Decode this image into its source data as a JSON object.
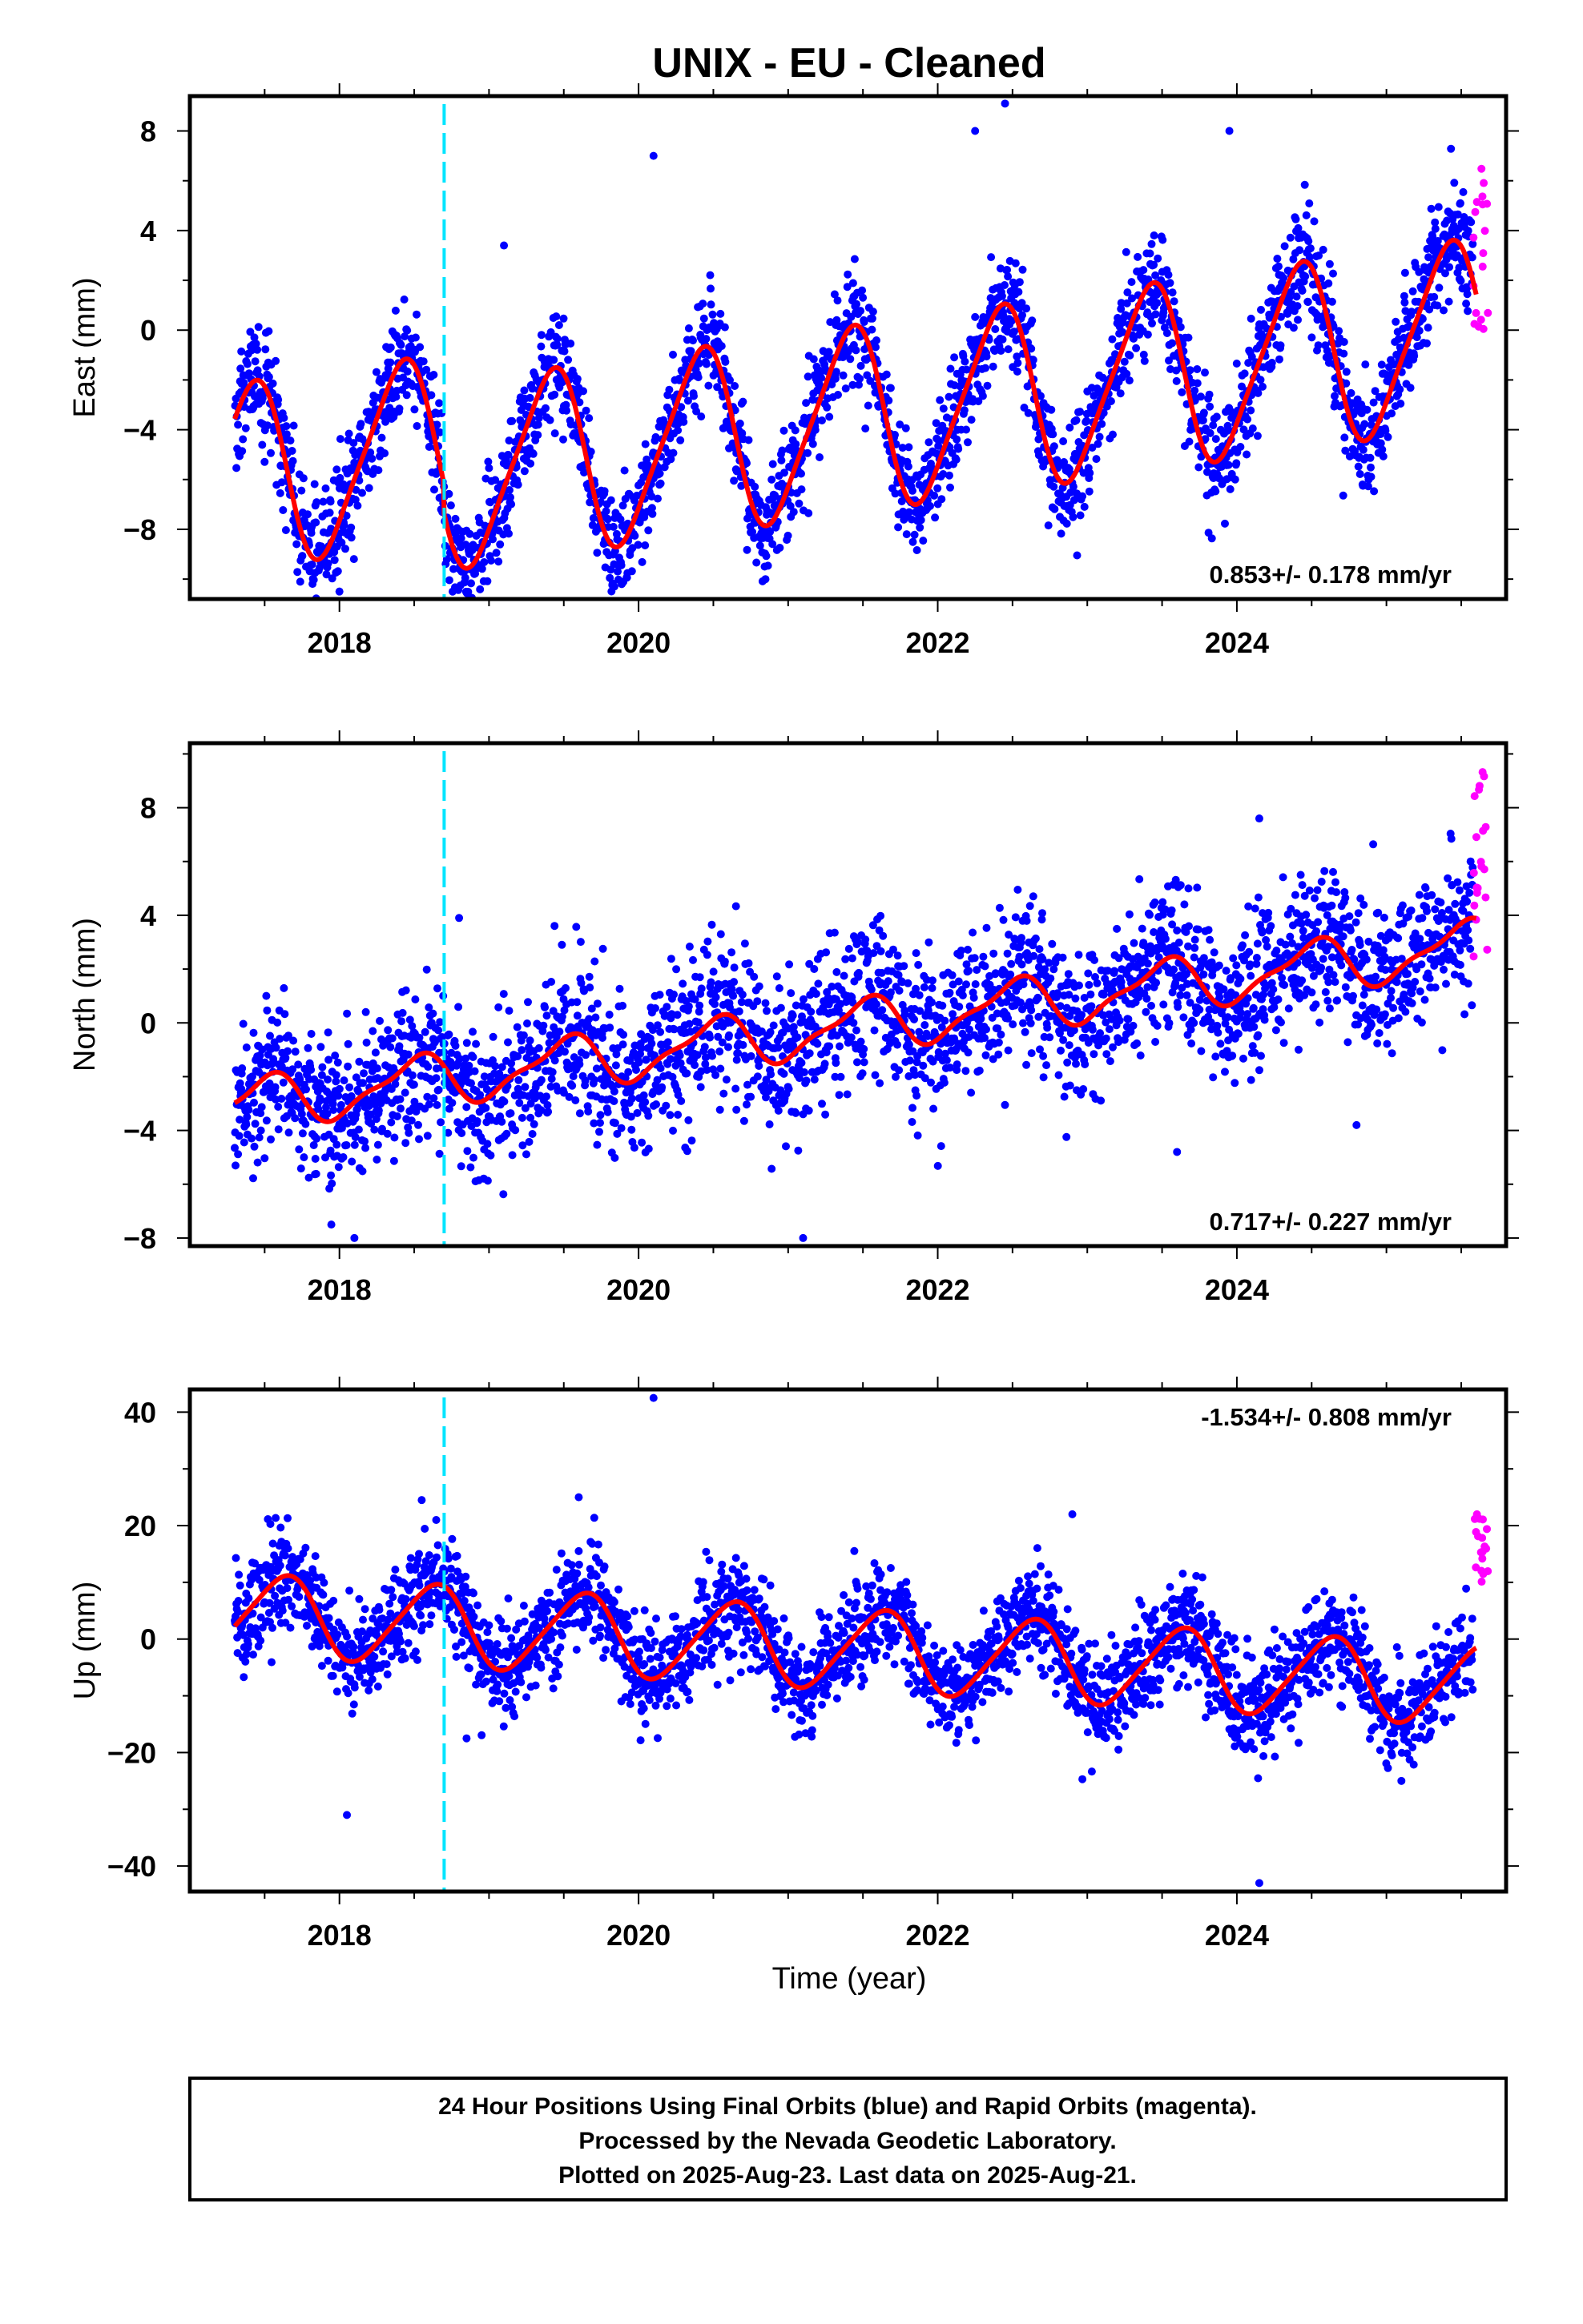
{
  "chart_data": {
    "title": "UNIX  - EU - Cleaned",
    "xlabel": "Time (year)",
    "x_range": [
      2017.0,
      2025.8
    ],
    "x_ticks": [
      2018,
      2020,
      2022,
      2024
    ],
    "earthquake_marker": 2018.7,
    "colors": {
      "final_orbits": "#0000ff",
      "rapid_orbits": "#ff00ff",
      "model": "#ff0000",
      "marker": "#00e5ff",
      "frame": "#000000"
    },
    "panels": [
      {
        "type": "scatter",
        "name": "east",
        "ylabel": "East (mm)",
        "ylim": [
          -10.8,
          9.4
        ],
        "y_ticks": [
          8,
          4,
          0,
          -4,
          -8
        ],
        "y_tick_labels": [
          "8",
          "4",
          "0",
          "−4",
          "−8"
        ],
        "rate_label": "0.853+/- 0.178 mm/yr",
        "rate_position": "bottom-right",
        "model": {
          "start_x": 2017.3,
          "start_y": -3.0,
          "trend": 0.853,
          "annual_amplitude": 3.6,
          "annual_peak": 0.4,
          "offset_at_marker": -1.2,
          "semiannual_amplitude": 0.6,
          "noise": 1.1,
          "outliers": [
            [
              2020.1,
              7.0
            ],
            [
              2022.25,
              8.0
            ],
            [
              2022.45,
              9.1
            ],
            [
              2023.95,
              8.0
            ],
            [
              2018.0,
              -10.5
            ],
            [
              2021.75,
              -5.4
            ],
            [
              2019.1,
              3.4
            ]
          ]
        },
        "rapid": {
          "x_range": [
            2025.58,
            2025.68
          ],
          "y_range": [
            -0.2,
            7.0
          ],
          "count": 18
        }
      },
      {
        "type": "scatter",
        "name": "north",
        "ylabel": "North (mm)",
        "ylim": [
          -8.3,
          10.4
        ],
        "y_ticks": [
          8,
          4,
          0,
          -4,
          -8
        ],
        "y_tick_labels": [
          "8",
          "4",
          "0",
          "−4",
          "−8"
        ],
        "rate_label": "0.717+/- 0.227 mm/yr",
        "rate_position": "bottom-right",
        "model": {
          "start_x": 2017.3,
          "start_y": -2.8,
          "trend": 0.717,
          "annual_amplitude": 0.9,
          "annual_peak": 0.5,
          "offset_at_marker": 0.0,
          "semiannual_amplitude": 0.3,
          "noise": 1.4,
          "outliers": [
            [
              2024.15,
              7.6
            ],
            [
              2021.1,
              -8.0
            ],
            [
              2018.1,
              -8.0
            ],
            [
              2023.6,
              -4.8
            ],
            [
              2024.8,
              -3.8
            ],
            [
              2018.8,
              3.9
            ]
          ]
        },
        "rapid": {
          "x_range": [
            2025.58,
            2025.68
          ],
          "y_range": [
            2.0,
            10.0
          ],
          "count": 20
        }
      },
      {
        "type": "scatter",
        "name": "up",
        "ylabel": "Up (mm)",
        "ylim": [
          -44.5,
          44.0
        ],
        "y_ticks": [
          40,
          20,
          0,
          -20,
          -40
        ],
        "y_tick_labels": [
          "40",
          "20",
          "0",
          "−20",
          "−40"
        ],
        "rate_label": "-1.534+/- 0.808 mm/yr",
        "rate_position": "top-right",
        "model": {
          "start_x": 2017.3,
          "start_y": 1.5,
          "trend": -1.534,
          "annual_amplitude": 7.0,
          "annual_peak": 0.62,
          "offset_at_marker": 0.0,
          "semiannual_amplitude": 1.0,
          "noise": 4.5,
          "outliers": [
            [
              2020.1,
              42.5
            ],
            [
              2018.05,
              -31.0
            ],
            [
              2024.15,
              -43.0
            ],
            [
              2018.55,
              24.5
            ],
            [
              2019.6,
              25.0
            ],
            [
              2022.9,
              22.0
            ],
            [
              2018.85,
              -17.5
            ],
            [
              2025.1,
              -25.0
            ]
          ]
        },
        "rapid": {
          "x_range": [
            2025.58,
            2025.68
          ],
          "y_range": [
            10.0,
            22.0
          ],
          "count": 18
        }
      }
    ]
  },
  "footer": {
    "line1": "24 Hour Positions Using Final Orbits (blue) and Rapid Orbits (magenta).",
    "line2": "Processed by the Nevada Geodetic Laboratory.",
    "line3": "Plotted on 2025-Aug-23. Last data on 2025-Aug-21."
  }
}
